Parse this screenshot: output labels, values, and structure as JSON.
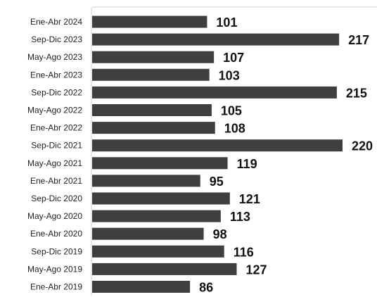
{
  "chart_data": {
    "type": "bar",
    "orientation": "horizontal",
    "categories": [
      "Ene-Abr 2024",
      "Sep-Dic 2023",
      "May-Ago 2023",
      "Ene-Abr 2023",
      "Sep-Dic 2022",
      "May-Ago 2022",
      "Ene-Abr 2022",
      "Sep-Dic 2021",
      "May-Ago 2021",
      "Ene-Abr 2021",
      "Sep-Dic 2020",
      "May-Ago 2020",
      "Ene-Abr 2020",
      "Sep-Dic 2019",
      "May-Ago 2019",
      "Ene-Abr 2019"
    ],
    "values": [
      101,
      217,
      107,
      103,
      215,
      105,
      108,
      220,
      119,
      95,
      121,
      113,
      98,
      116,
      127,
      86
    ],
    "title": "",
    "xlabel": "",
    "ylabel": "",
    "grid": false,
    "legend": "none",
    "colors": {
      "bar": "#3f3f3f",
      "axis": "#cfcfcf",
      "label": "#222222",
      "value": "#111111"
    }
  }
}
